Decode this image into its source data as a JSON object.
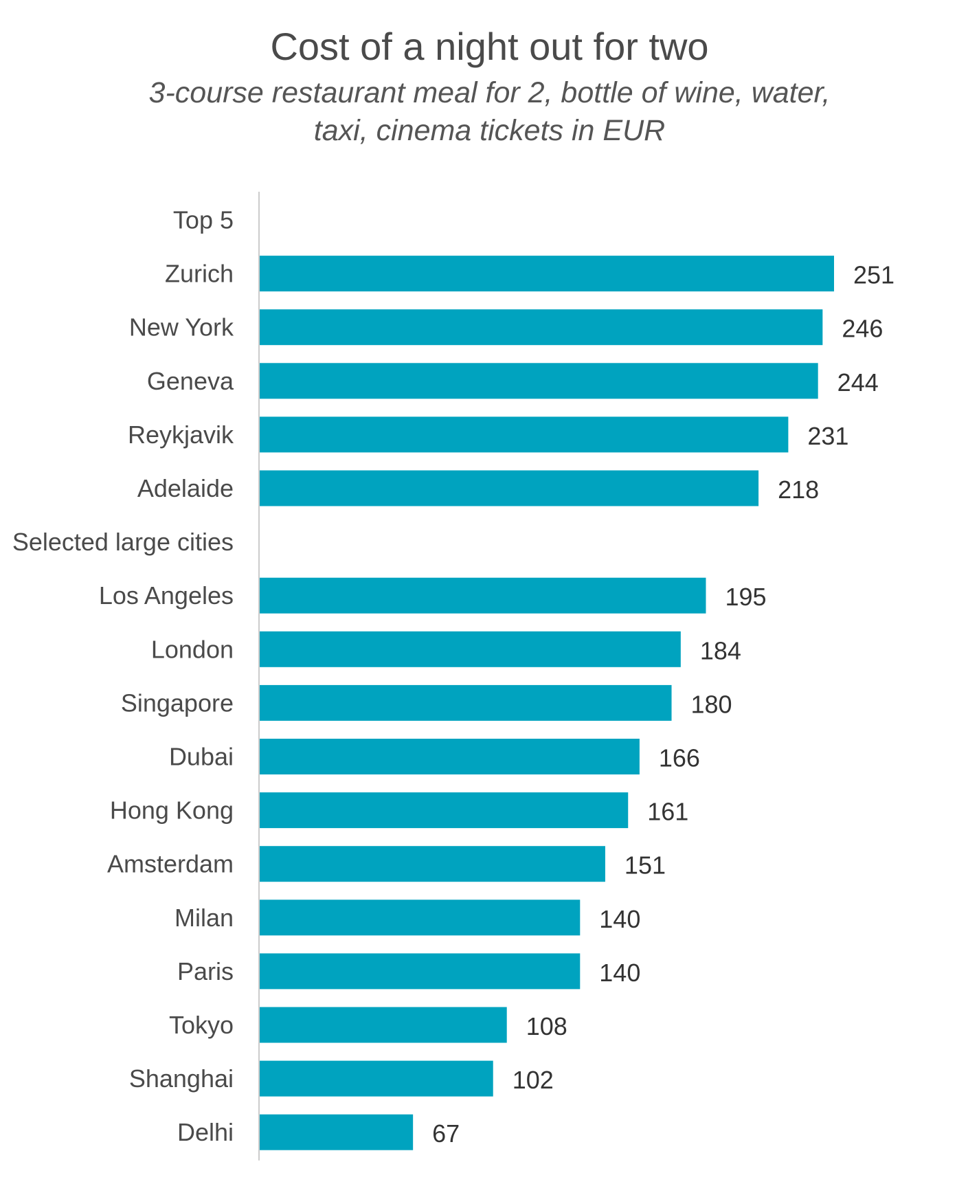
{
  "chart_data": {
    "type": "bar",
    "orientation": "horizontal",
    "title": "Cost of a night out for two",
    "subtitle_lines": [
      "3-course restaurant meal for 2, bottle of wine, water,",
      "taxi, cinema tickets in EUR"
    ],
    "bar_color": "#00a3bf",
    "axis_color": "#cccccc",
    "xlim": [
      0,
      251
    ],
    "grid": false,
    "legend": "none",
    "categories": [
      "Top 5",
      "Zurich",
      "New York",
      "Geneva",
      "Reykjavik",
      "Adelaide",
      "Selected large cities",
      "Los Angeles",
      "London",
      "Singapore",
      "Dubai",
      "Hong Kong",
      "Amsterdam",
      "Milan",
      "Paris",
      "Tokyo",
      "Shanghai",
      "Delhi"
    ],
    "values": [
      null,
      251,
      246,
      244,
      231,
      218,
      null,
      195,
      184,
      180,
      166,
      161,
      151,
      140,
      140,
      108,
      102,
      67
    ]
  }
}
